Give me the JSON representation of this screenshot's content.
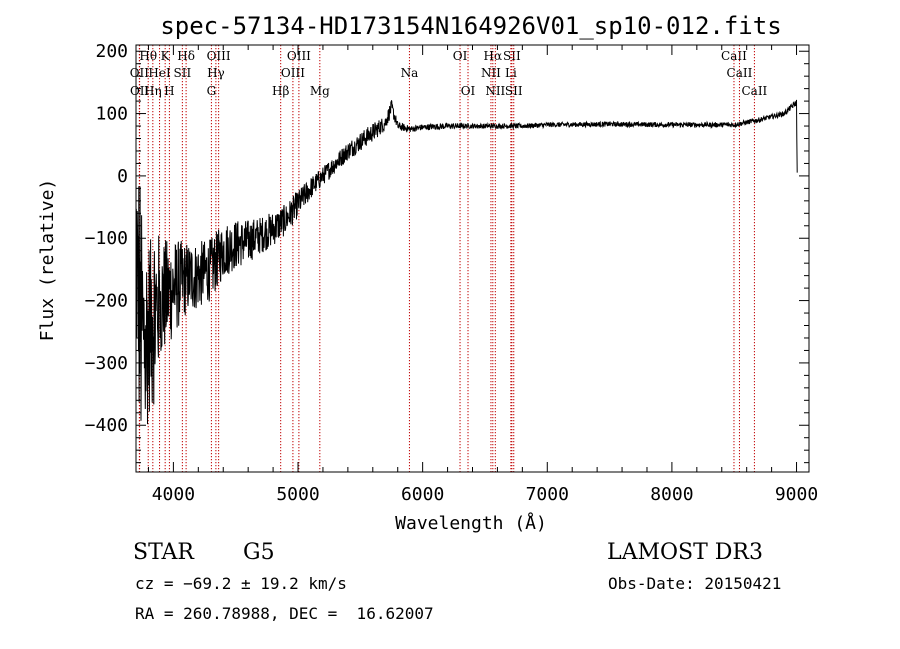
{
  "chart_data": {
    "type": "line",
    "title": "spec-57134-HD173154N164926V01_sp10-012.fits",
    "xlabel": "Wavelength (Å)",
    "ylabel": "Flux (relative)",
    "xlim": [
      3700,
      9100
    ],
    "ylim": [
      -475,
      210
    ],
    "xticks": [
      4000,
      5000,
      6000,
      7000,
      8000,
      9000
    ],
    "yticks": [
      -400,
      -300,
      -200,
      -100,
      0,
      100,
      200
    ],
    "ytick_labels": [
      "−400",
      "−300",
      "−200",
      "−100",
      "0",
      "100",
      "200"
    ],
    "spectrum_anchor_points": {
      "x": [
        3700,
        3750,
        3800,
        3900,
        4000,
        4100,
        4200,
        4300,
        4400,
        4500,
        4600,
        4700,
        4800,
        4900,
        5000,
        5100,
        5200,
        5300,
        5400,
        5500,
        5600,
        5700,
        5750,
        5800,
        5900,
        6000,
        6200,
        6400,
        6600,
        6800,
        7000,
        7500,
        8000,
        8500,
        8700,
        8900,
        9000,
        9005
      ],
      "y": [
        -150,
        -260,
        -250,
        -200,
        -180,
        -165,
        -160,
        -150,
        -120,
        -110,
        -105,
        -95,
        -85,
        -70,
        -45,
        -20,
        0,
        20,
        40,
        55,
        70,
        85,
        110,
        80,
        75,
        78,
        80,
        80,
        80,
        80,
        82,
        83,
        82,
        82,
        90,
        100,
        118,
        10
      ],
      "noise_amplitude": [
        200,
        200,
        150,
        100,
        80,
        60,
        55,
        50,
        45,
        40,
        35,
        30,
        28,
        25,
        22,
        18,
        15,
        15,
        15,
        15,
        15,
        12,
        12,
        7,
        5,
        5,
        5,
        4,
        4,
        4,
        4,
        4,
        4,
        4,
        4,
        4,
        5,
        5
      ]
    },
    "lines": [
      {
        "label": "OII",
        "x": 3727,
        "row": 1
      },
      {
        "label": "OII",
        "x": 3729,
        "row": 2
      },
      {
        "label": "Hθ",
        "x": 3798,
        "row": 0
      },
      {
        "label": "Hη",
        "x": 3835,
        "row": 2
      },
      {
        "label": "HeI",
        "x": 3889,
        "row": 1
      },
      {
        "label": "K",
        "x": 3934,
        "row": 0
      },
      {
        "label": "H",
        "x": 3968,
        "row": 2
      },
      {
        "label": "SII",
        "x": 4072,
        "row": 1
      },
      {
        "label": "Hδ",
        "x": 4102,
        "row": 0
      },
      {
        "label": "G",
        "x": 4305,
        "row": 2
      },
      {
        "label": "OIII",
        "x": 4363,
        "row": 0
      },
      {
        "label": "Hγ",
        "x": 4341,
        "row": 1
      },
      {
        "label": "Hβ",
        "x": 4861,
        "row": 2
      },
      {
        "label": "OIII",
        "x": 4959,
        "row": 1
      },
      {
        "label": "OIII",
        "x": 5007,
        "row": 0
      },
      {
        "label": "Mg",
        "x": 5175,
        "row": 2
      },
      {
        "label": "Na",
        "x": 5894,
        "row": 1
      },
      {
        "label": "OI",
        "x": 6300,
        "row": 0
      },
      {
        "label": "OI",
        "x": 6364,
        "row": 2
      },
      {
        "label": "NII",
        "x": 6548,
        "row": 1
      },
      {
        "label": "Hα",
        "x": 6563,
        "row": 0
      },
      {
        "label": "NII",
        "x": 6583,
        "row": 2
      },
      {
        "label": "Li",
        "x": 6708,
        "row": 1
      },
      {
        "label": "SII",
        "x": 6716,
        "row": 0
      },
      {
        "label": "SII",
        "x": 6731,
        "row": 2
      },
      {
        "label": "CaII",
        "x": 8498,
        "row": 0
      },
      {
        "label": "CaII",
        "x": 8542,
        "row": 1
      },
      {
        "label": "CaII",
        "x": 8662,
        "row": 2
      }
    ]
  },
  "info": {
    "object_class": "STAR",
    "subclass": "G5",
    "survey": "LAMOST DR3",
    "cz": "cz = −69.2 ± 19.2 km/s",
    "obs_date": "Obs-Date: 20150421",
    "coords": "RA = 260.78988, DEC =  16.62007"
  }
}
